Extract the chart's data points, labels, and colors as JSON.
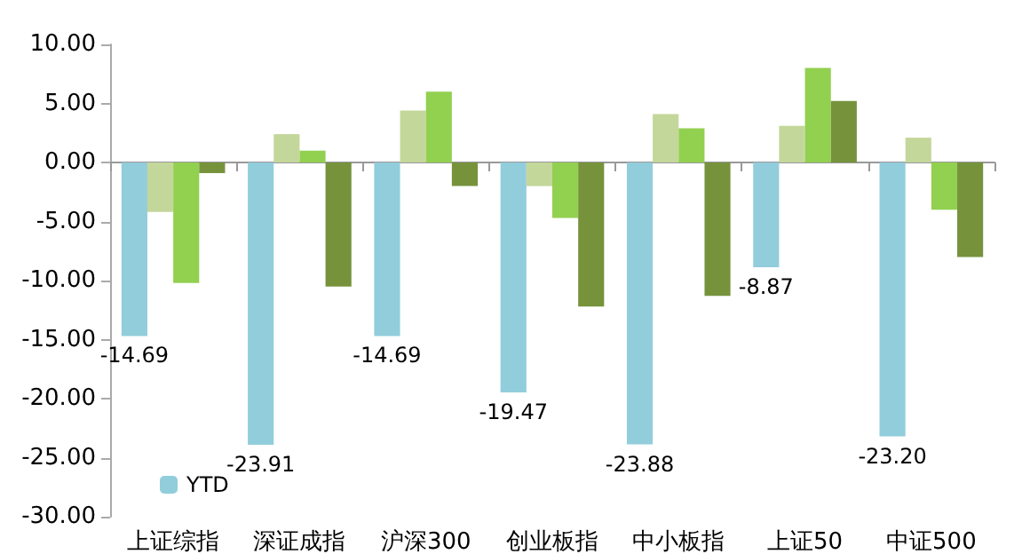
{
  "chart_data": {
    "type": "bar",
    "categories": [
      "上证综指",
      "深证成指",
      "沪深300",
      "创业板指",
      "中小板指",
      "上证50",
      "中证500"
    ],
    "series": [
      {
        "name": "YTD",
        "color": "#92cddc",
        "values": [
          -14.69,
          -23.91,
          -14.69,
          -19.47,
          -23.88,
          -8.87,
          -23.2
        ],
        "value_labels": [
          "-14.69",
          "-23.91",
          "-14.69",
          "-19.47",
          "-23.88",
          "-8.87",
          "-23.20"
        ]
      },
      {
        "color": "#c4d79b",
        "values": [
          -4.2,
          2.4,
          4.4,
          -2.0,
          4.1,
          3.1,
          2.1
        ]
      },
      {
        "color": "#92d050",
        "values": [
          -10.2,
          1.0,
          6.0,
          -4.7,
          2.9,
          8.0,
          -4.0
        ]
      },
      {
        "color": "#76933c",
        "values": [
          -0.9,
          -10.5,
          -2.0,
          -12.2,
          -11.3,
          5.2,
          -8.0
        ]
      }
    ],
    "ylim": [
      -30,
      10
    ],
    "yticks": [
      {
        "value": -30,
        "label": "-30.00"
      },
      {
        "value": -25,
        "label": "-25.00"
      },
      {
        "value": -20,
        "label": "-20.00"
      },
      {
        "value": -15,
        "label": "-15.00"
      },
      {
        "value": -10,
        "label": "-10.00"
      },
      {
        "value": -5,
        "label": "-5.00"
      },
      {
        "value": 0,
        "label": "0.00"
      },
      {
        "value": 5,
        "label": "5.00"
      },
      {
        "value": 10,
        "label": "10.00"
      }
    ],
    "legend": "bottom left"
  }
}
